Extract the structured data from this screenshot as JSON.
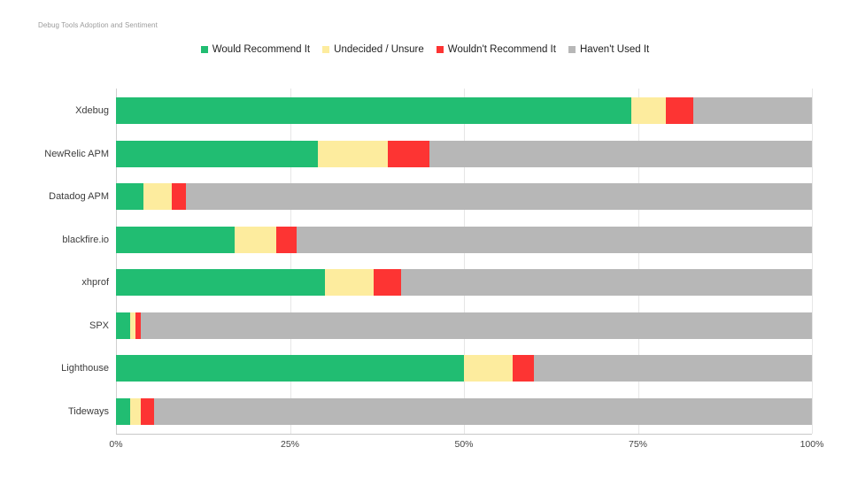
{
  "title": "Debug Tools Adoption and Sentiment",
  "chart_data": {
    "type": "bar",
    "orientation": "horizontal",
    "stacked": true,
    "unit": "percent",
    "title": "Debug Tools Adoption and Sentiment",
    "legend_position": "top-center",
    "grid": true,
    "categories": [
      "Xdebug",
      "NewRelic APM",
      "Datadog APM",
      "blackfire.io",
      "xhprof",
      "SPX",
      "Lighthouse",
      "Tideways"
    ],
    "series": [
      {
        "name": "Would Recommend It",
        "color": "#21bd72",
        "values": [
          74,
          29,
          4,
          17,
          30,
          2,
          50,
          2
        ]
      },
      {
        "name": "Undecided / Unsure",
        "color": "#fdec9e",
        "values": [
          5,
          10,
          4,
          6,
          7,
          0.8,
          7,
          1.5
        ]
      },
      {
        "name": "Wouldn't Recommend It",
        "color": "#fd3433",
        "values": [
          4,
          6,
          2,
          3,
          4,
          0.8,
          3,
          2
        ]
      },
      {
        "name": "Haven't Used It",
        "color": "#b7b7b7",
        "values": [
          17,
          55,
          90,
          74,
          59,
          96.4,
          40,
          94.5
        ]
      }
    ],
    "x_axis": {
      "min": 0,
      "max": 100,
      "tick_values": [
        0,
        25,
        50,
        75,
        100
      ],
      "tick_labels": [
        "0%",
        "25%",
        "50%",
        "75%",
        "100%"
      ]
    },
    "colors": {
      "gridline": "#e6e6e6",
      "zero_line": "#cfcfcf",
      "axis_line": "#c8c8c8",
      "title_text": "#9b9b9b",
      "label_text": "#3d3d3d",
      "tick_text": "#444444",
      "background": "#ffffff"
    }
  }
}
